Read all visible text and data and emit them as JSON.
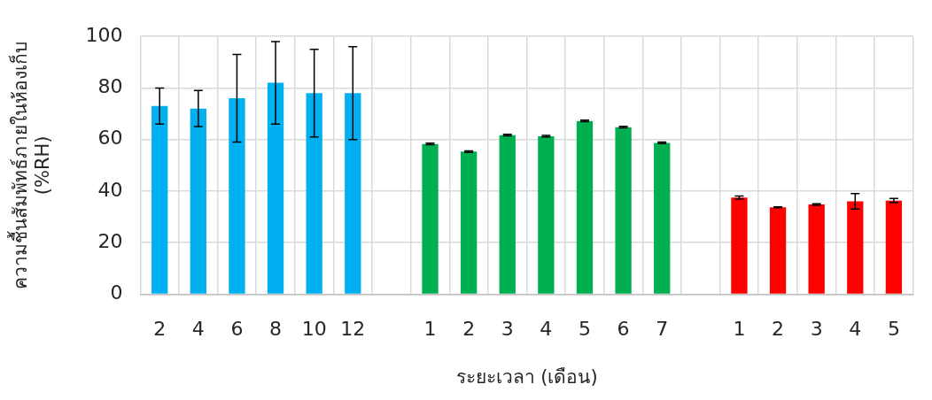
{
  "chart_data": {
    "type": "bar",
    "xlabel": "ระยะเวลา (เดือน)",
    "ylabel": "ความชื้นสัมพัทธ์ภายในห้องเก็บ\n(%RH)",
    "categories": [
      "2",
      "4",
      "6",
      "8",
      "10",
      "12",
      null,
      "1",
      "2",
      "3",
      "4",
      "5",
      "6",
      "7",
      null,
      "1",
      "2",
      "3",
      "4",
      "5"
    ],
    "values": [
      73,
      72,
      76,
      82,
      78,
      78,
      null,
      58.3,
      55.3,
      61.7,
      61.3,
      67.2,
      64.8,
      58.7,
      null,
      37.5,
      33.7,
      34.8,
      36,
      36.3
    ],
    "errors": [
      7,
      7,
      17,
      16,
      17,
      18,
      null,
      0.3,
      0.3,
      0.3,
      0.3,
      0.3,
      0.3,
      0.3,
      null,
      0.6,
      0.2,
      0.3,
      3,
      0.8
    ],
    "colors": [
      "#00b0f0",
      "#00b0f0",
      "#00b0f0",
      "#00b0f0",
      "#00b0f0",
      "#00b0f0",
      "#ffffff",
      "#00b050",
      "#00b050",
      "#00b050",
      "#00b050",
      "#00b050",
      "#00b050",
      "#00b050",
      "#ffffff",
      "#ff0000",
      "#ff0000",
      "#ff0000",
      "#ff0000",
      "#ff0000"
    ],
    "ylim": [
      0,
      100
    ],
    "yticks": [
      0,
      20,
      40,
      60,
      80,
      100
    ],
    "grid": true,
    "legend": false
  }
}
